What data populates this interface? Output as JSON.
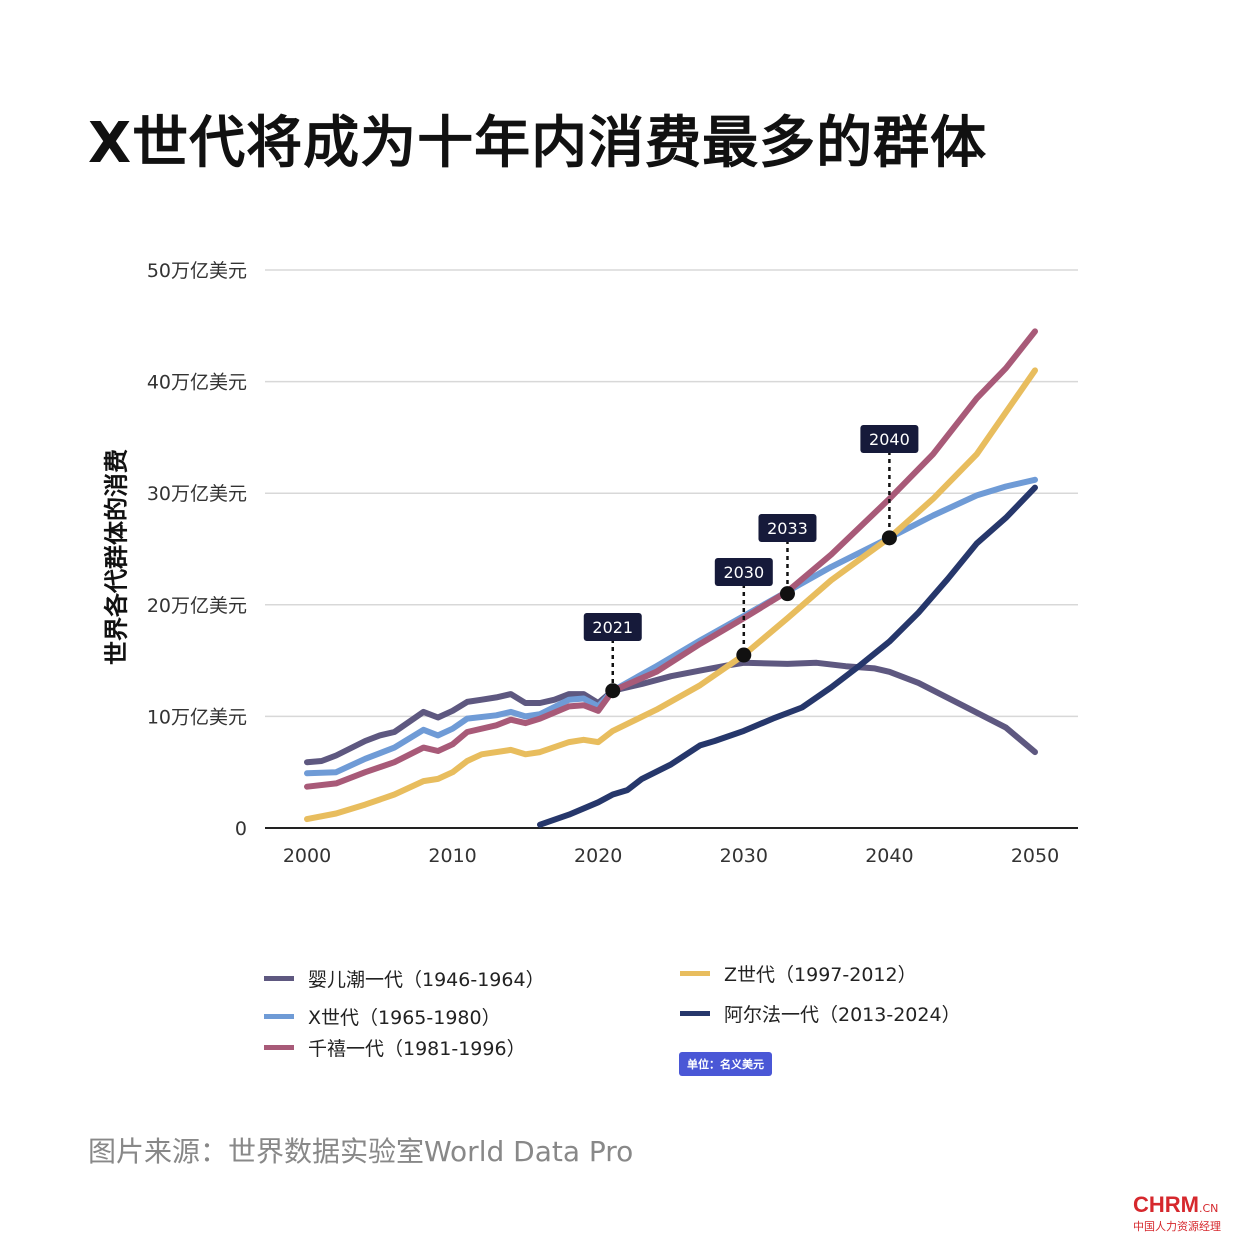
{
  "title": "X世代将成为十年内消费最多的群体",
  "source": "图片来源：世界数据实验室World Data Pro",
  "unit_badge": "单位：名义美元",
  "logo": {
    "main": "CHRM",
    "suffix": ".CN",
    "subtitle": "中国人力资源经理"
  },
  "chart_data": {
    "type": "line",
    "title": "X世代将成为十年内消费最多的群体",
    "xlabel": "",
    "ylabel": "世界各代群体的消费",
    "xlim": [
      2000,
      2050
    ],
    "ylim": [
      0,
      50
    ],
    "x_ticks": [
      2000,
      2010,
      2020,
      2030,
      2040,
      2050
    ],
    "y_ticks": [
      {
        "value": 0,
        "label": "0"
      },
      {
        "value": 10,
        "label": "10万亿美元"
      },
      {
        "value": 20,
        "label": "20万亿美元"
      },
      {
        "value": 30,
        "label": "30万亿美元"
      },
      {
        "value": 40,
        "label": "40万亿美元"
      },
      {
        "value": 50,
        "label": "50万亿美元"
      }
    ],
    "grid": true,
    "legend_position": "bottom",
    "series": [
      {
        "name": "婴儿潮一代（1946-1964）",
        "color": "#5e5880",
        "points": [
          [
            2000,
            5.9
          ],
          [
            2001,
            6.0
          ],
          [
            2002,
            6.5
          ],
          [
            2004,
            7.8
          ],
          [
            2005,
            8.3
          ],
          [
            2006,
            8.6
          ],
          [
            2007,
            9.5
          ],
          [
            2008,
            10.4
          ],
          [
            2009,
            9.9
          ],
          [
            2010,
            10.5
          ],
          [
            2011,
            11.3
          ],
          [
            2012,
            11.5
          ],
          [
            2013,
            11.7
          ],
          [
            2014,
            12.0
          ],
          [
            2015,
            11.2
          ],
          [
            2016,
            11.2
          ],
          [
            2017,
            11.5
          ],
          [
            2018,
            12.0
          ],
          [
            2019,
            12.0
          ],
          [
            2020,
            11.2
          ],
          [
            2021,
            12.3
          ],
          [
            2023,
            12.9
          ],
          [
            2025,
            13.6
          ],
          [
            2027,
            14.1
          ],
          [
            2029,
            14.6
          ],
          [
            2030,
            14.8
          ],
          [
            2033,
            14.7
          ],
          [
            2035,
            14.8
          ],
          [
            2037,
            14.5
          ],
          [
            2039,
            14.3
          ],
          [
            2040,
            14.0
          ],
          [
            2042,
            13.0
          ],
          [
            2045,
            11.0
          ],
          [
            2048,
            9.0
          ],
          [
            2050,
            6.8
          ]
        ]
      },
      {
        "name": "X世代（1965-1980）",
        "color": "#6f9bd6",
        "points": [
          [
            2000,
            4.9
          ],
          [
            2002,
            5.0
          ],
          [
            2004,
            6.2
          ],
          [
            2006,
            7.2
          ],
          [
            2008,
            8.8
          ],
          [
            2009,
            8.3
          ],
          [
            2010,
            8.9
          ],
          [
            2011,
            9.8
          ],
          [
            2013,
            10.1
          ],
          [
            2014,
            10.4
          ],
          [
            2015,
            10.0
          ],
          [
            2016,
            10.2
          ],
          [
            2018,
            11.5
          ],
          [
            2019,
            11.6
          ],
          [
            2020,
            10.9
          ],
          [
            2021,
            12.3
          ],
          [
            2024,
            14.5
          ],
          [
            2027,
            16.8
          ],
          [
            2030,
            19.0
          ],
          [
            2033,
            21.2
          ],
          [
            2036,
            23.4
          ],
          [
            2040,
            26.0
          ],
          [
            2043,
            28.0
          ],
          [
            2046,
            29.8
          ],
          [
            2048,
            30.6
          ],
          [
            2050,
            31.2
          ]
        ]
      },
      {
        "name": "千禧一代（1981-1996）",
        "color": "#a85a78",
        "points": [
          [
            2000,
            3.7
          ],
          [
            2002,
            4.0
          ],
          [
            2004,
            5.0
          ],
          [
            2006,
            5.9
          ],
          [
            2008,
            7.2
          ],
          [
            2009,
            6.9
          ],
          [
            2010,
            7.5
          ],
          [
            2011,
            8.6
          ],
          [
            2013,
            9.2
          ],
          [
            2014,
            9.7
          ],
          [
            2015,
            9.4
          ],
          [
            2016,
            9.8
          ],
          [
            2018,
            10.9
          ],
          [
            2019,
            11.0
          ],
          [
            2020,
            10.5
          ],
          [
            2021,
            12.3
          ],
          [
            2024,
            14.0
          ],
          [
            2027,
            16.5
          ],
          [
            2030,
            18.8
          ],
          [
            2033,
            21.2
          ],
          [
            2036,
            24.5
          ],
          [
            2040,
            29.5
          ],
          [
            2043,
            33.5
          ],
          [
            2046,
            38.5
          ],
          [
            2048,
            41.2
          ],
          [
            2050,
            44.5
          ]
        ]
      },
      {
        "name": "Z世代（1997-2012）",
        "color": "#e8bd5e",
        "points": [
          [
            2000,
            0.8
          ],
          [
            2002,
            1.3
          ],
          [
            2004,
            2.1
          ],
          [
            2006,
            3.0
          ],
          [
            2008,
            4.2
          ],
          [
            2009,
            4.4
          ],
          [
            2010,
            5.0
          ],
          [
            2011,
            6.0
          ],
          [
            2012,
            6.6
          ],
          [
            2014,
            7.0
          ],
          [
            2015,
            6.6
          ],
          [
            2016,
            6.8
          ],
          [
            2018,
            7.7
          ],
          [
            2019,
            7.9
          ],
          [
            2020,
            7.7
          ],
          [
            2021,
            8.7
          ],
          [
            2024,
            10.6
          ],
          [
            2027,
            12.8
          ],
          [
            2030,
            15.5
          ],
          [
            2033,
            18.8
          ],
          [
            2036,
            22.2
          ],
          [
            2040,
            26.0
          ],
          [
            2043,
            29.5
          ],
          [
            2046,
            33.5
          ],
          [
            2050,
            41.0
          ]
        ]
      },
      {
        "name": "阿尔法一代（2013-2024）",
        "color": "#26376b",
        "points": [
          [
            2016,
            0.3
          ],
          [
            2018,
            1.2
          ],
          [
            2020,
            2.3
          ],
          [
            2021,
            3.0
          ],
          [
            2022,
            3.4
          ],
          [
            2023,
            4.4
          ],
          [
            2025,
            5.7
          ],
          [
            2027,
            7.4
          ],
          [
            2028,
            7.8
          ],
          [
            2030,
            8.7
          ],
          [
            2032,
            9.8
          ],
          [
            2034,
            10.8
          ],
          [
            2036,
            12.6
          ],
          [
            2038,
            14.6
          ],
          [
            2040,
            16.7
          ],
          [
            2042,
            19.3
          ],
          [
            2044,
            22.3
          ],
          [
            2046,
            25.5
          ],
          [
            2048,
            27.8
          ],
          [
            2050,
            30.5
          ]
        ]
      }
    ],
    "annotations": [
      {
        "label": "2021",
        "x": 2021,
        "y": 12.3
      },
      {
        "label": "2030",
        "x": 2030,
        "y": 15.5
      },
      {
        "label": "2033",
        "x": 2033,
        "y": 21.0
      },
      {
        "label": "2040",
        "x": 2040,
        "y": 26.0
      }
    ]
  }
}
